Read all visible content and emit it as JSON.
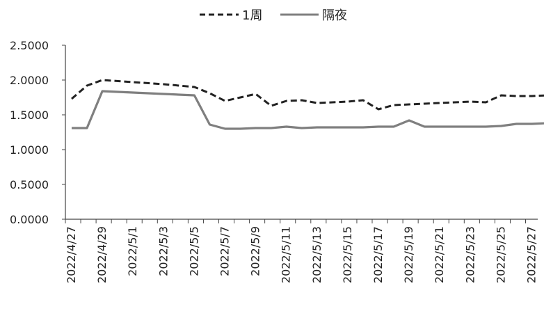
{
  "chart_data": {
    "type": "line",
    "title": "",
    "xlabel": "",
    "ylabel": "",
    "ylim": [
      0,
      2.5
    ],
    "yticks": [
      "0.0000",
      "0.5000",
      "1.0000",
      "1.5000",
      "2.0000",
      "2.5000"
    ],
    "grid": false,
    "legend_position": "top",
    "x_dates": [
      "2022/4/27",
      "2022/4/28",
      "2022/4/29",
      "2022/5/1",
      "2022/5/3",
      "2022/5/5",
      "2022/5/6",
      "2022/5/7",
      "2022/5/8",
      "2022/5/9",
      "2022/5/10",
      "2022/5/11",
      "2022/5/12",
      "2022/5/13",
      "2022/5/15",
      "2022/5/16",
      "2022/5/17",
      "2022/5/18",
      "2022/5/19",
      "2022/5/20",
      "2022/5/21",
      "2022/5/23",
      "2022/5/24",
      "2022/5/25",
      "2022/5/26",
      "2022/5/27",
      "2022/5/28"
    ],
    "xtick_labels": [
      "2022/4/27",
      "2022/4/29",
      "2022/5/1",
      "2022/5/3",
      "2022/5/5",
      "2022/5/7",
      "2022/5/9",
      "2022/5/11",
      "2022/5/13",
      "2022/5/15",
      "2022/5/17",
      "2022/5/19",
      "2022/5/21",
      "2022/5/23",
      "2022/5/25",
      "2022/5/27"
    ],
    "series": [
      {
        "name": "1周",
        "style": "dashed",
        "color": "#222222",
        "values": [
          1.73,
          1.92,
          2.0,
          1.97,
          1.94,
          1.9,
          1.81,
          1.7,
          1.75,
          1.8,
          1.63,
          1.7,
          1.71,
          1.67,
          1.69,
          1.71,
          1.58,
          1.64,
          1.65,
          1.66,
          1.67,
          1.69,
          1.68,
          1.78,
          1.77,
          1.77,
          1.78
        ]
      },
      {
        "name": "隔夜",
        "style": "solid",
        "color": "#7f7f7f",
        "values": [
          1.31,
          1.31,
          1.84,
          1.82,
          1.8,
          1.78,
          1.36,
          1.3,
          1.3,
          1.31,
          1.31,
          1.33,
          1.31,
          1.32,
          1.32,
          1.32,
          1.33,
          1.33,
          1.42,
          1.33,
          1.33,
          1.33,
          1.33,
          1.34,
          1.37,
          1.37,
          1.38
        ]
      }
    ]
  }
}
